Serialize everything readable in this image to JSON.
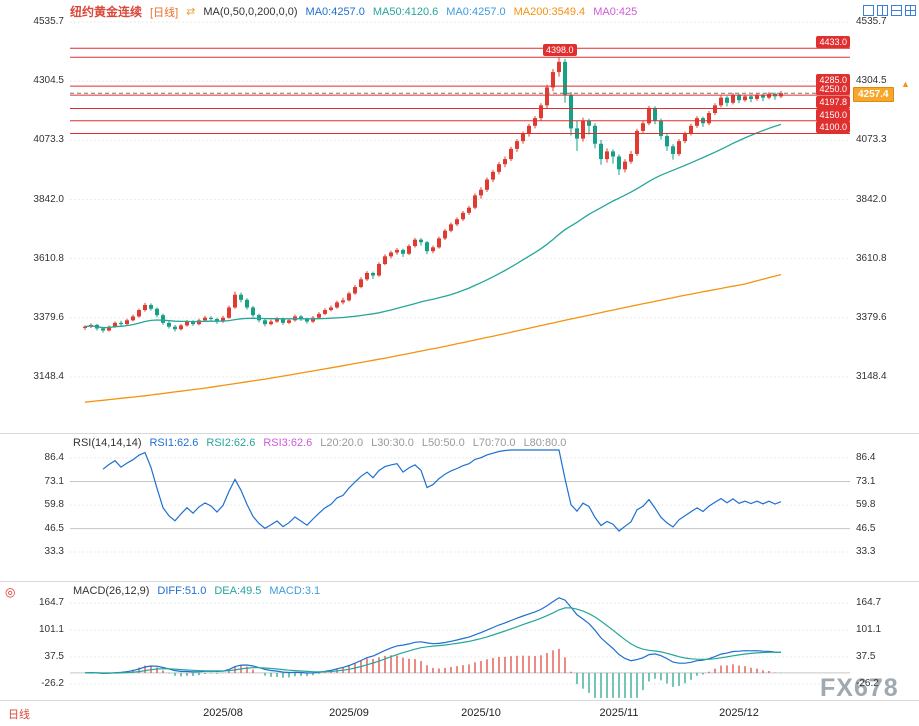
{
  "window": {
    "watermark": "FX678"
  },
  "header": {
    "title": "纽约黄金连续",
    "period_badge": "[日线]",
    "switch_icon_glyph": "⇄",
    "legend": [
      {
        "text": "MA(0,50,0,200,0,0)",
        "color": "#333333"
      },
      {
        "text": "MA0:4257.0",
        "color": "#1F6FD0"
      },
      {
        "text": "MA50:4120.6",
        "color": "#26A69A"
      },
      {
        "text": "MA0:4257.0",
        "color": "#3E9BE0"
      },
      {
        "text": "MA200:3549.4",
        "color": "#F5920F"
      },
      {
        "text": "MA0:425",
        "color": "#CE5BD6"
      }
    ],
    "layout_icons": [
      "pane-layout-single-icon",
      "pane-layout-vsplit-icon",
      "pane-layout-hsplit-icon",
      "pane-layout-quad-icon"
    ]
  },
  "colors": {
    "up": "#E03B30",
    "down": "#16A085",
    "ma50": "#26A69A",
    "ma200": "#F5920F",
    "level_line": "#E02F2F",
    "level_label_bg": "#E02F2F",
    "last_price_line": "#777777",
    "price_tag_bg": "#F7A62B",
    "price_tag_border": "#D98C0F",
    "rsi_line": "#1F6FD0",
    "diff_line": "#1F6FD0",
    "dea_line": "#26A69A",
    "grid_dotted": "#E3E3E3",
    "grid_solid": "#C6C6C6",
    "axis_text": "#333333",
    "title": "#D9483B",
    "badge": "#E8702A",
    "switch_icon": "#E8A13C",
    "period_tab": "#D9483B",
    "watermark": "#97A0A8",
    "macd_icon": "#D9342B",
    "toolbar_icon": "#3D7EDB",
    "arrow_up": "#F5920F",
    "month_text": "#222222"
  },
  "chart_data": {
    "main": {
      "type": "candlestick",
      "symbol": "纽约黄金连续",
      "period": "日线",
      "axis_labels": [
        "4535.7",
        "4304.5",
        "4073.3",
        "3842.0",
        "3610.8",
        "3379.6",
        "3148.4"
      ],
      "axis_values": [
        4535.7,
        4304.5,
        4073.3,
        3842.0,
        3610.8,
        3379.6,
        3148.4
      ],
      "levels": [
        {
          "value": 4433.0,
          "label": "4433.0",
          "pos": "right"
        },
        {
          "value": 4398.0,
          "label": "4398.0",
          "pos": "inline",
          "label_x": 543
        },
        {
          "value": 4285.0,
          "label": "4285.0",
          "pos": "right"
        },
        {
          "value": 4250.0,
          "label": "4250.0",
          "pos": "right"
        },
        {
          "value": 4197.8,
          "label": "4197.8",
          "pos": "right"
        },
        {
          "value": 4150.0,
          "label": "4150.0",
          "pos": "right"
        },
        {
          "value": 4100.0,
          "label": "4100.0",
          "pos": "right"
        }
      ],
      "last_price": {
        "value": 4257.4,
        "label": "4257.4"
      },
      "ma50_window": 50,
      "ma200_points": [
        [
          0,
          3050
        ],
        [
          10,
          3075
        ],
        [
          20,
          3105
        ],
        [
          30,
          3140
        ],
        [
          40,
          3180
        ],
        [
          50,
          3222
        ],
        [
          60,
          3268
        ],
        [
          70,
          3318
        ],
        [
          80,
          3370
        ],
        [
          90,
          3420
        ],
        [
          100,
          3468
        ],
        [
          110,
          3512
        ],
        [
          116,
          3549
        ]
      ],
      "candles": [
        [
          3340,
          3350,
          3332,
          3345
        ],
        [
          3345,
          3358,
          3340,
          3352
        ],
        [
          3352,
          3356,
          3330,
          3338
        ],
        [
          3338,
          3344,
          3322,
          3330
        ],
        [
          3330,
          3350,
          3326,
          3345
        ],
        [
          3345,
          3366,
          3341,
          3360
        ],
        [
          3360,
          3368,
          3348,
          3355
        ],
        [
          3355,
          3376,
          3350,
          3370
        ],
        [
          3370,
          3392,
          3366,
          3385
        ],
        [
          3385,
          3415,
          3381,
          3410
        ],
        [
          3410,
          3438,
          3404,
          3430
        ],
        [
          3430,
          3436,
          3408,
          3415
        ],
        [
          3415,
          3420,
          3382,
          3390
        ],
        [
          3390,
          3396,
          3352,
          3360
        ],
        [
          3360,
          3368,
          3338,
          3345
        ],
        [
          3345,
          3352,
          3326,
          3335
        ],
        [
          3335,
          3356,
          3330,
          3350
        ],
        [
          3350,
          3371,
          3345,
          3365
        ],
        [
          3365,
          3370,
          3348,
          3355
        ],
        [
          3355,
          3376,
          3350,
          3370
        ],
        [
          3370,
          3388,
          3364,
          3380
        ],
        [
          3380,
          3386,
          3366,
          3375
        ],
        [
          3375,
          3380,
          3356,
          3365
        ],
        [
          3365,
          3388,
          3360,
          3380
        ],
        [
          3380,
          3428,
          3376,
          3420
        ],
        [
          3420,
          3482,
          3415,
          3470
        ],
        [
          3470,
          3478,
          3440,
          3450
        ],
        [
          3450,
          3456,
          3412,
          3420
        ],
        [
          3420,
          3426,
          3382,
          3390
        ],
        [
          3390,
          3396,
          3362,
          3370
        ],
        [
          3370,
          3376,
          3346,
          3355
        ],
        [
          3355,
          3372,
          3350,
          3365
        ],
        [
          3365,
          3382,
          3360,
          3375
        ],
        [
          3375,
          3380,
          3352,
          3360
        ],
        [
          3360,
          3377,
          3355,
          3370
        ],
        [
          3370,
          3392,
          3365,
          3385
        ],
        [
          3385,
          3390,
          3367,
          3375
        ],
        [
          3375,
          3380,
          3357,
          3365
        ],
        [
          3365,
          3387,
          3360,
          3380
        ],
        [
          3380,
          3402,
          3375,
          3395
        ],
        [
          3395,
          3417,
          3390,
          3410
        ],
        [
          3410,
          3428,
          3405,
          3420
        ],
        [
          3420,
          3447,
          3415,
          3440
        ],
        [
          3440,
          3458,
          3432,
          3448
        ],
        [
          3448,
          3482,
          3443,
          3475
        ],
        [
          3475,
          3508,
          3470,
          3500
        ],
        [
          3500,
          3538,
          3495,
          3530
        ],
        [
          3530,
          3562,
          3524,
          3555
        ],
        [
          3555,
          3560,
          3532,
          3545
        ],
        [
          3545,
          3597,
          3540,
          3590
        ],
        [
          3590,
          3628,
          3585,
          3620
        ],
        [
          3620,
          3642,
          3612,
          3635
        ],
        [
          3635,
          3652,
          3626,
          3645
        ],
        [
          3645,
          3650,
          3618,
          3630
        ],
        [
          3630,
          3667,
          3625,
          3660
        ],
        [
          3660,
          3692,
          3654,
          3685
        ],
        [
          3685,
          3691,
          3662,
          3675
        ],
        [
          3675,
          3680,
          3628,
          3640
        ],
        [
          3640,
          3662,
          3632,
          3655
        ],
        [
          3655,
          3697,
          3650,
          3690
        ],
        [
          3690,
          3727,
          3684,
          3720
        ],
        [
          3720,
          3752,
          3714,
          3745
        ],
        [
          3745,
          3772,
          3738,
          3765
        ],
        [
          3765,
          3797,
          3758,
          3790
        ],
        [
          3790,
          3817,
          3782,
          3810
        ],
        [
          3810,
          3866,
          3804,
          3858
        ],
        [
          3858,
          3890,
          3845,
          3880
        ],
        [
          3880,
          3928,
          3872,
          3920
        ],
        [
          3920,
          3958,
          3910,
          3950
        ],
        [
          3950,
          3988,
          3940,
          3980
        ],
        [
          3980,
          4010,
          3968,
          4000
        ],
        [
          4000,
          4048,
          3992,
          4040
        ],
        [
          4040,
          4078,
          4028,
          4070
        ],
        [
          4070,
          4108,
          4060,
          4100
        ],
        [
          4100,
          4138,
          4088,
          4130
        ],
        [
          4130,
          4168,
          4120,
          4160
        ],
        [
          4160,
          4218,
          4150,
          4210
        ],
        [
          4210,
          4290,
          4198,
          4280
        ],
        [
          4280,
          4352,
          4265,
          4340
        ],
        [
          4340,
          4398,
          4322,
          4380
        ],
        [
          4380,
          4392,
          4220,
          4250
        ],
        [
          4250,
          4262,
          4092,
          4120
        ],
        [
          4120,
          4150,
          4032,
          4080
        ],
        [
          4080,
          4162,
          4068,
          4150
        ],
        [
          4150,
          4158,
          4096,
          4130
        ],
        [
          4130,
          4140,
          4042,
          4060
        ],
        [
          4060,
          4075,
          3978,
          4000
        ],
        [
          4000,
          4042,
          3986,
          4030
        ],
        [
          4030,
          4038,
          3982,
          4010
        ],
        [
          4010,
          4018,
          3938,
          3960
        ],
        [
          3960,
          4000,
          3948,
          3990
        ],
        [
          3990,
          4032,
          3982,
          4020
        ],
        [
          4020,
          4118,
          4012,
          4110
        ],
        [
          4110,
          4150,
          4098,
          4140
        ],
        [
          4140,
          4208,
          4132,
          4200
        ],
        [
          4200,
          4206,
          4136,
          4150
        ],
        [
          4150,
          4158,
          4076,
          4090
        ],
        [
          4090,
          4098,
          4032,
          4050
        ],
        [
          4050,
          4058,
          3998,
          4020
        ],
        [
          4020,
          4078,
          4012,
          4070
        ],
        [
          4070,
          4108,
          4062,
          4100
        ],
        [
          4100,
          4138,
          4092,
          4130
        ],
        [
          4130,
          4168,
          4122,
          4160
        ],
        [
          4160,
          4166,
          4126,
          4140
        ],
        [
          4140,
          4188,
          4132,
          4180
        ],
        [
          4180,
          4218,
          4172,
          4210
        ],
        [
          4210,
          4248,
          4202,
          4240
        ],
        [
          4240,
          4246,
          4206,
          4220
        ],
        [
          4220,
          4258,
          4214,
          4250
        ],
        [
          4250,
          4256,
          4218,
          4230
        ],
        [
          4230,
          4252,
          4224,
          4245
        ],
        [
          4245,
          4250,
          4222,
          4235
        ],
        [
          4235,
          4257,
          4228,
          4250
        ],
        [
          4250,
          4256,
          4226,
          4240
        ],
        [
          4240,
          4262,
          4234,
          4255
        ],
        [
          4255,
          4260,
          4232,
          4245
        ],
        [
          4245,
          4266,
          4238,
          4257.4
        ]
      ]
    },
    "rsi": {
      "type": "line",
      "period": 14,
      "legend": [
        {
          "text": "RSI(14,14,14)",
          "color": "#333333"
        },
        {
          "text": "RSI1:62.6",
          "color": "#1F6FD0"
        },
        {
          "text": "RSI2:62.6",
          "color": "#26A69A"
        },
        {
          "text": "RSI3:62.6",
          "color": "#CE5BD6"
        },
        {
          "text": "L20:20.0",
          "color": "#999999"
        },
        {
          "text": "L30:30.0",
          "color": "#999999"
        },
        {
          "text": "L50:50.0",
          "color": "#999999"
        },
        {
          "text": "L70:70.0",
          "color": "#999999"
        },
        {
          "text": "L80:80.0",
          "color": "#999999"
        }
      ],
      "axis_labels": [
        "86.4",
        "73.1",
        "59.8",
        "46.5",
        "33.3"
      ],
      "axis_values": [
        86.4,
        73.1,
        59.8,
        46.5,
        33.3
      ],
      "solid_lines": [
        73.1,
        46.5
      ],
      "current": 62.6
    },
    "macd": {
      "type": "macd",
      "params": [
        26,
        12,
        9
      ],
      "legend": [
        {
          "text": "MACD(26,12,9)",
          "color": "#333333"
        },
        {
          "text": "DIFF:51.0",
          "color": "#1F6FD0"
        },
        {
          "text": "DEA:49.5",
          "color": "#26A69A"
        },
        {
          "text": "MACD:3.1",
          "color": "#3E9BE0"
        }
      ],
      "axis_labels": [
        "164.7",
        "101.1",
        "37.5",
        "-26.2"
      ],
      "axis_values": [
        164.7,
        101.1,
        37.5,
        -26.2
      ],
      "current": {
        "diff": 51.0,
        "dea": 49.5,
        "macd": 3.1
      }
    }
  },
  "bottom_axis": {
    "period_tab": "日线",
    "ticks": [
      {
        "label": "2025/08",
        "index": 23
      },
      {
        "label": "2025/09",
        "index": 44
      },
      {
        "label": "2025/10",
        "index": 66
      },
      {
        "label": "2025/11",
        "index": 89
      },
      {
        "label": "2025/12",
        "index": 109
      }
    ]
  }
}
